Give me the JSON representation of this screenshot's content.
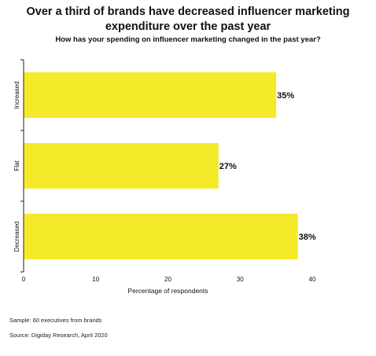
{
  "title": "Over a third of brands have decreased influencer marketing expenditure over the past year",
  "subtitle": "How has your spending on influencer marketing changed in the past year?",
  "footnotes": {
    "sample": "Sample: 60 executives from brands",
    "source": "Source: Digiday Research, April 2020"
  },
  "chart_data": {
    "type": "bar",
    "orientation": "horizontal",
    "categories": [
      "Increased",
      "Flat",
      "Decreased"
    ],
    "values": [
      35,
      27,
      38
    ],
    "value_labels": [
      "35%",
      "27%",
      "38%"
    ],
    "xlabel": "Percentage of respondents",
    "ylabel": "",
    "xlim": [
      0,
      40
    ],
    "xticks": [
      "0",
      "10",
      "20",
      "30",
      "40"
    ],
    "bar_color": "#f5ea2a",
    "grid": false
  }
}
